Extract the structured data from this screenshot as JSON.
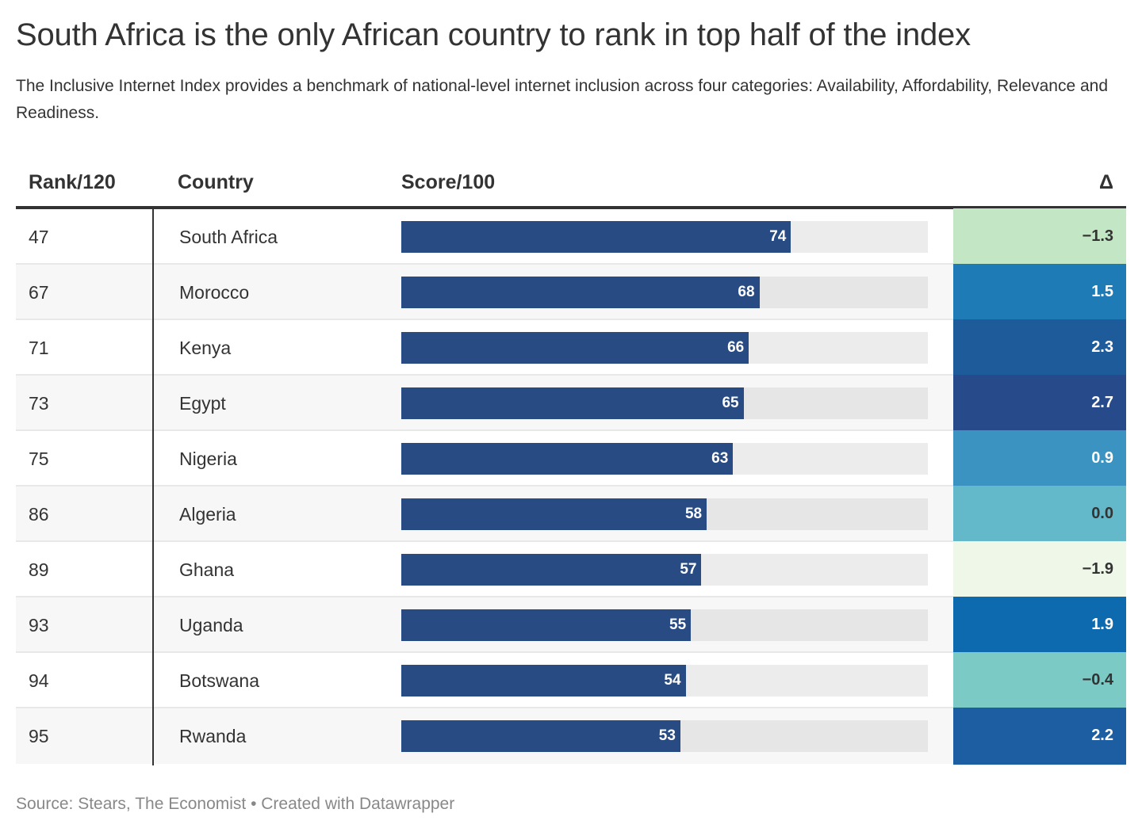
{
  "title": "South Africa is the only African country to rank in top half of the index",
  "subtitle": "The Inclusive Internet Index provides a benchmark of national-level internet inclusion across four categories: Availability, Affordability, Relevance and Readiness.",
  "footer": "Source: Stears, The Economist • Created with Datawrapper",
  "table": {
    "headers": {
      "rank": "Rank/120",
      "country": "Country",
      "score": "Score/100",
      "delta": "Δ"
    },
    "rows": [
      {
        "rank": "47",
        "country": "South Africa",
        "score": "74",
        "delta": "−1.3"
      },
      {
        "rank": "67",
        "country": "Morocco",
        "score": "68",
        "delta": "1.5"
      },
      {
        "rank": "71",
        "country": "Kenya",
        "score": "66",
        "delta": "2.3"
      },
      {
        "rank": "73",
        "country": "Egypt",
        "score": "65",
        "delta": "2.7"
      },
      {
        "rank": "75",
        "country": "Nigeria",
        "score": "63",
        "delta": "0.9"
      },
      {
        "rank": "86",
        "country": "Algeria",
        "score": "58",
        "delta": "0.0"
      },
      {
        "rank": "89",
        "country": "Ghana",
        "score": "57",
        "delta": "−1.9"
      },
      {
        "rank": "93",
        "country": "Uganda",
        "score": "55",
        "delta": "1.9"
      },
      {
        "rank": "94",
        "country": "Botswana",
        "score": "54",
        "delta": "−0.4"
      },
      {
        "rank": "95",
        "country": "Rwanda",
        "score": "53",
        "delta": "2.2"
      }
    ]
  },
  "colors": {
    "bar": "#274b82",
    "delta_bg": [
      "#c3e7c5",
      "#1f7bb6",
      "#1e5b9a",
      "#274b8a",
      "#3b93c2",
      "#63b8c9",
      "#eef7e8",
      "#0e6aaf",
      "#7ccac6",
      "#1c5ea1"
    ],
    "delta_text": [
      "#333333",
      "#ffffff",
      "#ffffff",
      "#ffffff",
      "#ffffff",
      "#333333",
      "#333333",
      "#ffffff",
      "#333333",
      "#ffffff"
    ]
  },
  "chart_data": {
    "type": "table",
    "title": "South Africa is the only African country to rank in top half of the index",
    "columns": [
      "Rank/120",
      "Country",
      "Score/100",
      "Δ"
    ],
    "score_range": [
      0,
      100
    ],
    "categories": [
      "South Africa",
      "Morocco",
      "Kenya",
      "Egypt",
      "Nigeria",
      "Algeria",
      "Ghana",
      "Uganda",
      "Botswana",
      "Rwanda"
    ],
    "rank": [
      47,
      67,
      71,
      73,
      75,
      86,
      89,
      93,
      94,
      95
    ],
    "score": [
      74,
      68,
      66,
      65,
      63,
      58,
      57,
      55,
      54,
      53
    ],
    "delta": [
      -1.3,
      1.5,
      2.3,
      2.7,
      0.9,
      0.0,
      -1.9,
      1.9,
      -0.4,
      2.2
    ]
  }
}
